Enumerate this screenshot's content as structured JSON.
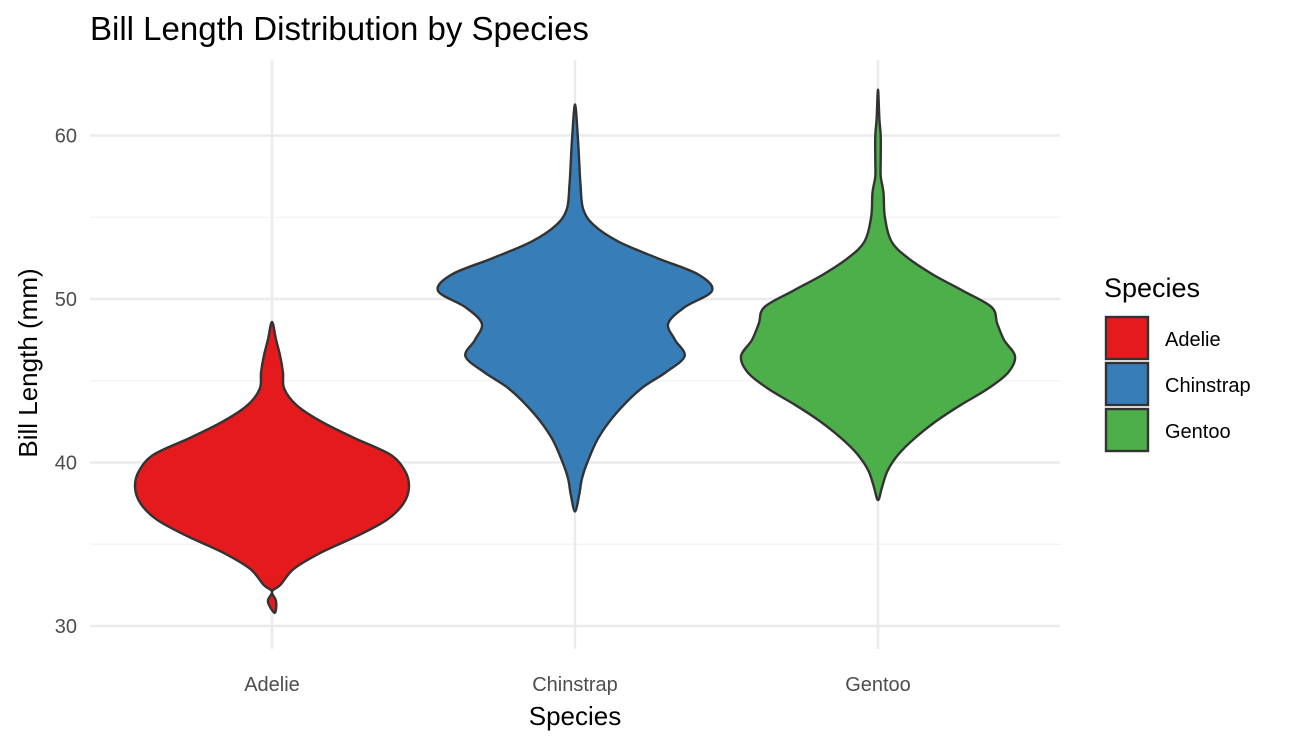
{
  "chart_data": {
    "type": "violin",
    "title": "Bill Length Distribution by Species",
    "xlabel": "Species",
    "ylabel": "Bill Length (mm)",
    "ylim": [
      28.6,
      64.6
    ],
    "y_ticks": [
      30,
      40,
      50,
      60
    ],
    "grid": true,
    "legend": {
      "title": "Species",
      "placement": "right"
    },
    "categories": [
      "Adelie",
      "Chinstrap",
      "Gentoo"
    ],
    "series": [
      {
        "name": "Adelie",
        "color": "#e41a1c",
        "density": [
          [
            32.1,
            0.0
          ],
          [
            30.8,
            0.02
          ],
          [
            31.5,
            0.03
          ],
          [
            32.5,
            0.06
          ],
          [
            33.5,
            0.16
          ],
          [
            34.5,
            0.36
          ],
          [
            35.5,
            0.62
          ],
          [
            36.5,
            0.84
          ],
          [
            37.5,
            0.96
          ],
          [
            38.5,
            1.0
          ],
          [
            39.5,
            0.97
          ],
          [
            40.5,
            0.86
          ],
          [
            41.5,
            0.6
          ],
          [
            42.5,
            0.36
          ],
          [
            43.5,
            0.18
          ],
          [
            44.5,
            0.09
          ],
          [
            45.5,
            0.08
          ],
          [
            46.5,
            0.06
          ],
          [
            47.5,
            0.03
          ],
          [
            48.6,
            0.0
          ]
        ]
      },
      {
        "name": "Chinstrap",
        "color": "#377eb8",
        "density": [
          [
            37.0,
            0.0
          ],
          [
            38.0,
            0.03
          ],
          [
            39.0,
            0.05
          ],
          [
            40.0,
            0.09
          ],
          [
            41.5,
            0.17
          ],
          [
            43.0,
            0.3
          ],
          [
            44.5,
            0.48
          ],
          [
            45.5,
            0.66
          ],
          [
            46.5,
            0.8
          ],
          [
            47.5,
            0.73
          ],
          [
            48.5,
            0.68
          ],
          [
            49.5,
            0.8
          ],
          [
            50.5,
            1.0
          ],
          [
            51.5,
            0.9
          ],
          [
            52.5,
            0.6
          ],
          [
            53.5,
            0.32
          ],
          [
            54.5,
            0.14
          ],
          [
            55.5,
            0.06
          ],
          [
            57.0,
            0.04
          ],
          [
            58.5,
            0.03
          ],
          [
            60.0,
            0.02
          ],
          [
            61.9,
            0.0
          ]
        ]
      },
      {
        "name": "Gentoo",
        "color": "#4daf4a",
        "density": [
          [
            37.7,
            0.0
          ],
          [
            38.5,
            0.03
          ],
          [
            39.5,
            0.07
          ],
          [
            40.5,
            0.15
          ],
          [
            41.5,
            0.27
          ],
          [
            42.5,
            0.42
          ],
          [
            43.5,
            0.6
          ],
          [
            44.5,
            0.8
          ],
          [
            45.5,
            0.95
          ],
          [
            46.5,
            1.0
          ],
          [
            47.5,
            0.92
          ],
          [
            48.5,
            0.87
          ],
          [
            49.5,
            0.83
          ],
          [
            50.5,
            0.62
          ],
          [
            51.5,
            0.4
          ],
          [
            52.5,
            0.22
          ],
          [
            53.5,
            0.1
          ],
          [
            55.0,
            0.05
          ],
          [
            56.5,
            0.04
          ],
          [
            57.5,
            0.02
          ],
          [
            58.5,
            0.02
          ],
          [
            60.0,
            0.02
          ],
          [
            61.0,
            0.01
          ],
          [
            62.8,
            0.0
          ]
        ]
      }
    ]
  }
}
